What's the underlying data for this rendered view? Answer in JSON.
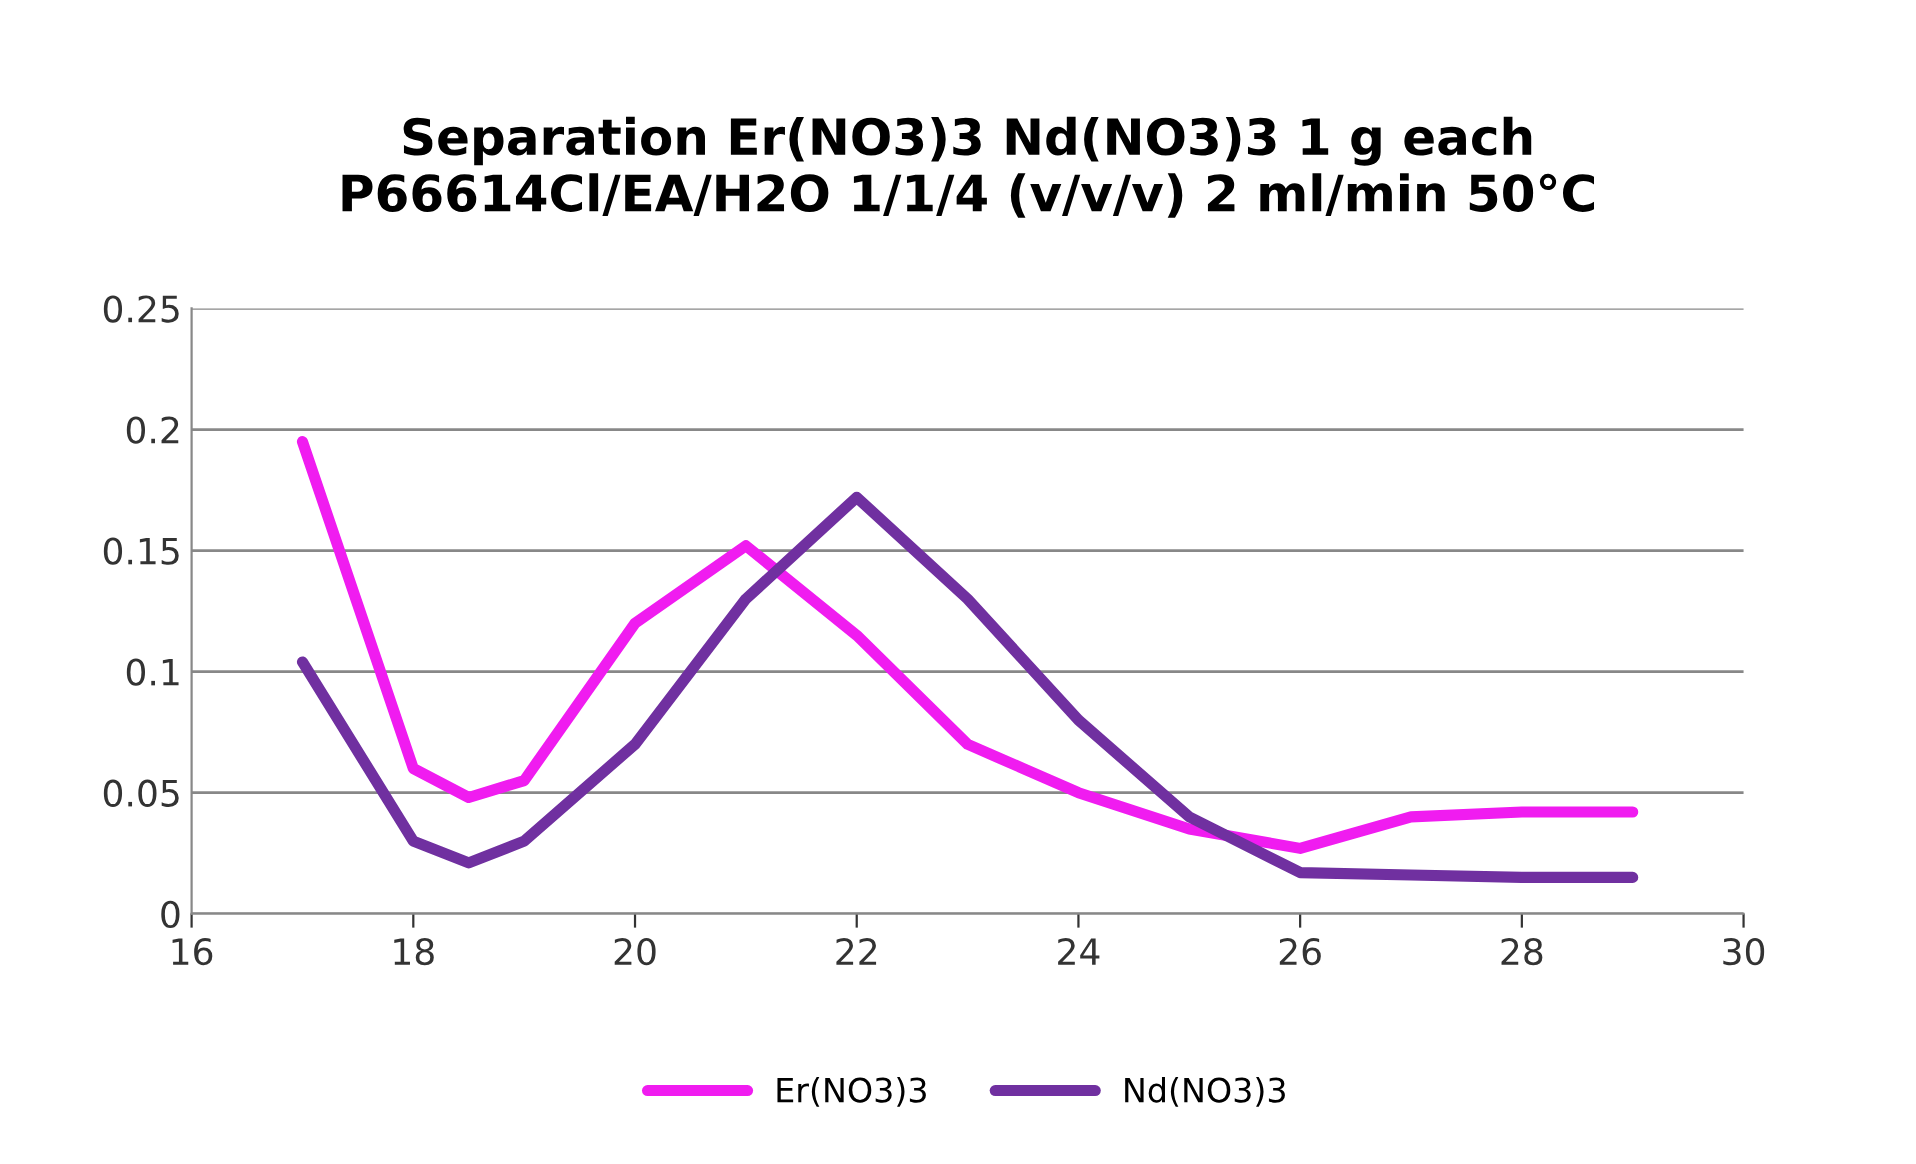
{
  "chart_data": {
    "type": "line",
    "title": "Separation Er(NO3)3 Nd(NO3)3 1 g each\nP66614Cl/EA/H2O 1/1/4 (v/v/v) 2 ml/min 50°C",
    "x": [
      17,
      18,
      18.5,
      19,
      20,
      21,
      22,
      23,
      24,
      25,
      26,
      27,
      28,
      29
    ],
    "series": [
      {
        "name": "Er(NO3)3",
        "color": "#f01cf0",
        "values": [
          0.195,
          0.06,
          0.048,
          0.055,
          0.12,
          0.152,
          0.115,
          0.07,
          0.05,
          0.035,
          0.027,
          0.04,
          0.042,
          0.042
        ]
      },
      {
        "name": "Nd(NO3)3",
        "color": "#7030a0",
        "values": [
          0.104,
          0.03,
          0.021,
          0.03,
          0.07,
          0.13,
          0.172,
          0.13,
          0.08,
          0.04,
          0.017,
          0.016,
          0.015,
          0.015
        ]
      }
    ],
    "xlim": [
      16,
      30
    ],
    "xticks": [
      16,
      18,
      20,
      22,
      24,
      26,
      28,
      30
    ],
    "ylim": [
      0,
      0.25
    ],
    "yticks": [
      0,
      0.05,
      0.1,
      0.15,
      0.2,
      0.25
    ],
    "grid": "y",
    "legend": "bottom",
    "marker": "none",
    "line_style": "solid"
  }
}
